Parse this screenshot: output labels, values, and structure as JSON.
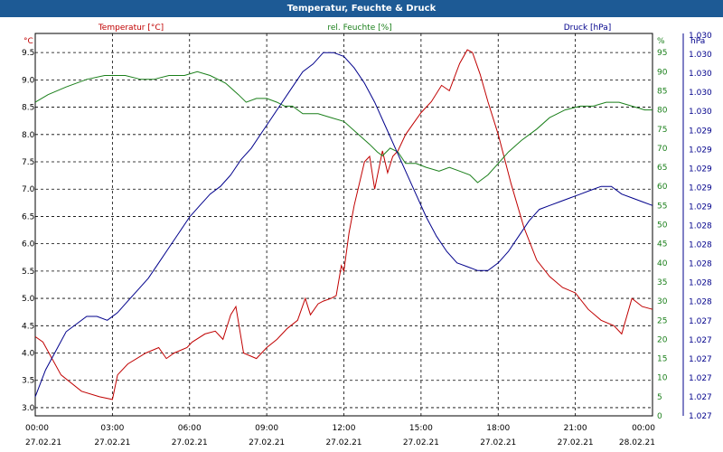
{
  "title": "Temperatur, Feuchte & Druck",
  "colors": {
    "titlebar": "#1d5a95",
    "temperature": "#c00000",
    "humidity": "#1a7f1a",
    "pressure": "#00008b",
    "grid": "#000000"
  },
  "chart_data": {
    "type": "line",
    "grid": true,
    "legend": "top",
    "x_ticks": [
      {
        "time": "00:00",
        "date": "27.02.21"
      },
      {
        "time": "03:00",
        "date": "27.02.21"
      },
      {
        "time": "06:00",
        "date": "27.02.21"
      },
      {
        "time": "09:00",
        "date": "27.02.21"
      },
      {
        "time": "12:00",
        "date": "27.02.21"
      },
      {
        "time": "15:00",
        "date": "27.02.21"
      },
      {
        "time": "18:00",
        "date": "27.02.21"
      },
      {
        "time": "21:00",
        "date": "27.02.21"
      },
      {
        "time": "00:00",
        "date": "28.02.21"
      }
    ],
    "xlim": [
      0,
      24
    ],
    "axes": {
      "temperature": {
        "unit": "°C",
        "ylim": [
          2.85,
          9.85
        ],
        "ticks": [
          "3.0",
          "3.5",
          "4.0",
          "4.5",
          "5.0",
          "5.5",
          "6.0",
          "6.5",
          "7.0",
          "7.5",
          "8.0",
          "8.5",
          "9.0",
          "9.5"
        ]
      },
      "humidity": {
        "unit": "%",
        "ylim": [
          0,
          100
        ],
        "ticks": [
          "0",
          "5",
          "10",
          "15",
          "20",
          "25",
          "30",
          "35",
          "40",
          "45",
          "50",
          "55",
          "60",
          "65",
          "70",
          "75",
          "80",
          "85",
          "90",
          "95",
          "%"
        ]
      },
      "pressure": {
        "unit": "hPa",
        "ylim": [
          0,
          100
        ],
        "ticks": [
          "1.027",
          "1.027",
          "1.027",
          "1.027",
          "1.027",
          "1.027",
          "1.028",
          "1.028",
          "1.028",
          "1.028",
          "1.028",
          "1.029",
          "1.029",
          "1.029",
          "1.029",
          "1.029",
          "1.030",
          "1.030",
          "1.030",
          "1.030",
          "1.030",
          "hPa"
        ]
      }
    },
    "series": [
      {
        "name": "Temperatur [°C]",
        "axis": "temperature",
        "x": [
          0,
          0.3,
          1,
          1.8,
          2.5,
          3.0,
          3.2,
          3.6,
          4.3,
          4.8,
          5.1,
          5.4,
          5.9,
          6.1,
          6.6,
          7.0,
          7.3,
          7.6,
          7.8,
          8.1,
          8.6,
          9.0,
          9.4,
          9.8,
          10.2,
          10.5,
          10.7,
          11.0,
          11.2,
          11.5,
          11.7,
          11.9,
          12.0,
          12.2,
          12.4,
          12.8,
          13.0,
          13.2,
          13.5,
          13.7,
          13.9,
          14.1,
          14.4,
          14.7,
          15.0,
          15.4,
          15.8,
          16.1,
          16.5,
          16.8,
          17.0,
          17.3,
          17.6,
          18.0,
          18.5,
          19.0,
          19.5,
          20.0,
          20.5,
          21.0,
          21.5,
          22.0,
          22.5,
          22.8,
          23.2,
          23.6,
          24.0
        ],
        "values": [
          4.3,
          4.2,
          3.6,
          3.3,
          3.2,
          3.15,
          3.6,
          3.8,
          4.0,
          4.1,
          3.9,
          4.0,
          4.1,
          4.2,
          4.35,
          4.4,
          4.25,
          4.7,
          4.85,
          4.0,
          3.9,
          4.1,
          4.25,
          4.45,
          4.6,
          5.0,
          4.7,
          4.9,
          4.95,
          5.0,
          5.05,
          5.6,
          5.5,
          6.2,
          6.7,
          7.5,
          7.6,
          7.0,
          7.7,
          7.3,
          7.6,
          7.7,
          8.0,
          8.2,
          8.4,
          8.6,
          8.9,
          8.8,
          9.3,
          9.55,
          9.5,
          9.1,
          8.6,
          8.0,
          7.1,
          6.3,
          5.7,
          5.4,
          5.2,
          5.1,
          4.8,
          4.6,
          4.5,
          4.35,
          5.0,
          4.85,
          4.8
        ]
      },
      {
        "name": "rel. Feuchte [%]",
        "axis": "humidity",
        "x": [
          0,
          0.5,
          1.2,
          2.0,
          2.7,
          3.5,
          4.1,
          4.6,
          5.2,
          5.8,
          6.3,
          6.8,
          7.4,
          7.9,
          8.2,
          8.6,
          9.0,
          9.4,
          9.7,
          10.0,
          10.4,
          11.0,
          11.5,
          12.0,
          12.5,
          13.0,
          13.3,
          13.5,
          13.8,
          14.1,
          14.4,
          14.8,
          15.2,
          15.7,
          16.1,
          16.5,
          16.9,
          17.2,
          17.6,
          18.0,
          18.4,
          18.9,
          19.5,
          20.0,
          20.6,
          21.2,
          21.7,
          22.2,
          22.7,
          23.2,
          23.7,
          24.0
        ],
        "values": [
          82,
          84,
          86,
          88,
          89,
          89,
          88,
          88,
          89,
          89,
          90,
          89,
          87,
          84,
          82,
          83,
          83,
          82,
          81,
          81,
          79,
          79,
          78,
          77,
          74,
          71,
          69,
          68,
          70,
          69,
          66,
          66,
          65,
          64,
          65,
          64,
          63,
          61,
          63,
          66,
          69,
          72,
          75,
          78,
          80,
          81,
          81,
          82,
          82,
          81,
          80,
          80
        ]
      },
      {
        "name": "Druck [hPa]",
        "axis": "pressure",
        "x": [
          0,
          0.4,
          0.8,
          1.2,
          1.6,
          2.0,
          2.4,
          2.8,
          3.2,
          3.6,
          4.0,
          4.4,
          4.8,
          5.2,
          5.6,
          6.0,
          6.4,
          6.8,
          7.2,
          7.6,
          8.0,
          8.4,
          8.8,
          9.2,
          9.6,
          10.0,
          10.4,
          10.8,
          11.2,
          11.6,
          12.0,
          12.4,
          12.8,
          13.2,
          13.6,
          14.0,
          14.4,
          14.8,
          15.2,
          15.6,
          16.0,
          16.4,
          16.8,
          17.2,
          17.6,
          18.0,
          18.4,
          18.8,
          19.2,
          19.6,
          20.0,
          20.4,
          20.8,
          21.2,
          21.6,
          22.0,
          22.4,
          22.8,
          23.2,
          23.6,
          24.0
        ],
        "values": [
          5,
          12,
          17,
          22,
          24,
          26,
          26,
          25,
          27,
          30,
          33,
          36,
          40,
          44,
          48,
          52,
          55,
          58,
          60,
          63,
          67,
          70,
          74,
          78,
          82,
          86,
          90,
          92,
          95,
          95,
          94,
          91,
          87,
          82,
          76,
          70,
          64,
          58,
          52,
          47,
          43,
          40,
          39,
          38,
          38,
          40,
          43,
          47,
          51,
          54,
          55,
          56,
          57,
          58,
          59,
          60,
          60,
          58,
          57,
          56,
          55
        ]
      }
    ]
  }
}
